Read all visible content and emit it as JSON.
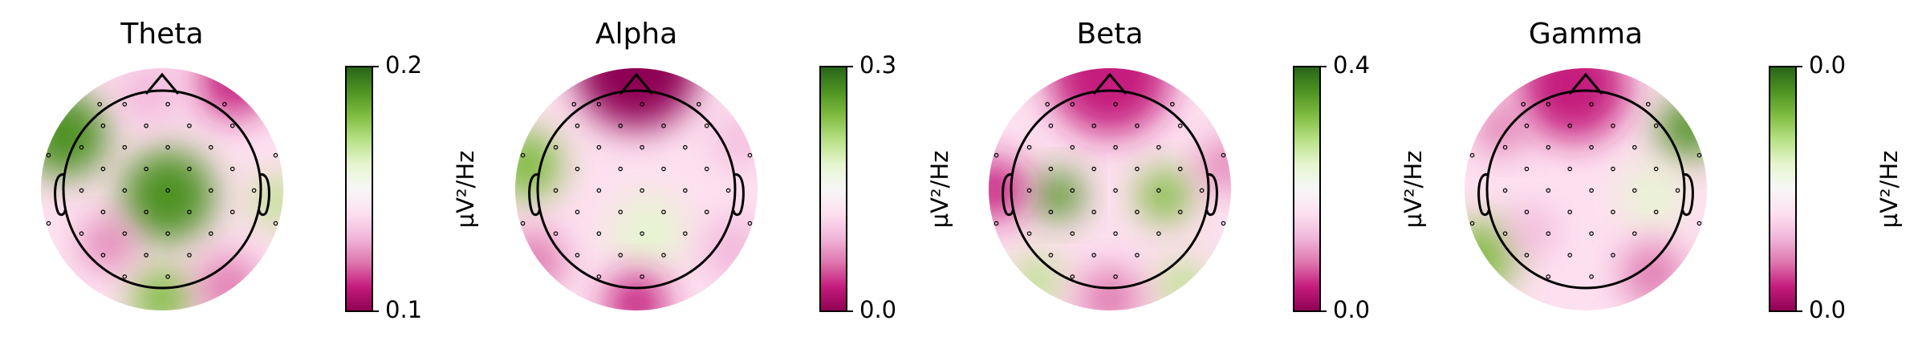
{
  "chart_data": [
    {
      "type": "topomap",
      "title": "Theta",
      "colorbar_label": "µV²/Hz",
      "ylim": [
        0.1,
        0.2
      ],
      "yticks": [
        0.1,
        0.2
      ],
      "colors": [
        "#8e0152",
        "#c51b7d",
        "#de77ae",
        "#f1b6da",
        "#fde0ef",
        "#f7f7f7",
        "#e6f5d0",
        "#b8e186",
        "#7fbc41",
        "#4d9221",
        "#276419"
      ]
    },
    {
      "type": "topomap",
      "title": "Alpha",
      "colorbar_label": "µV²/Hz",
      "ylim": [
        0,
        0.3
      ],
      "yticks": [
        {
          "value": 0,
          "label": "0.0"
        },
        0.3
      ],
      "colors": [
        "#8e0152",
        "#c51b7d",
        "#de77ae",
        "#f1b6da",
        "#fde0ef",
        "#f7f7f7",
        "#e6f5d0",
        "#b8e186",
        "#7fbc41",
        "#4d9221",
        "#276419"
      ]
    },
    {
      "type": "topomap",
      "title": "Beta",
      "colorbar_label": "µV²/Hz",
      "ylim": [
        0,
        0.4
      ],
      "yticks": [
        {
          "value": 0,
          "label": "0.0"
        },
        0.4
      ],
      "colors": [
        "#8e0152",
        "#c51b7d",
        "#de77ae",
        "#f1b6da",
        "#fde0ef",
        "#f7f7f7",
        "#e6f5d0",
        "#b8e186",
        "#7fbc41",
        "#4d9221",
        "#276419"
      ]
    },
    {
      "type": "topomap",
      "title": "Gamma",
      "colorbar_label": "µV²/Hz",
      "ylim": [
        0,
        0.04
      ],
      "yticks": [
        {
          "value": 0,
          "label": "0.0"
        },
        {
          "value": 0.04,
          "label": "0.0"
        }
      ],
      "colors": [
        "#8e0152",
        "#c51b7d",
        "#de77ae",
        "#f1b6da",
        "#fde0ef",
        "#f7f7f7",
        "#e6f5d0",
        "#b8e186",
        "#7fbc41",
        "#4d9221",
        "#276419"
      ]
    }
  ]
}
